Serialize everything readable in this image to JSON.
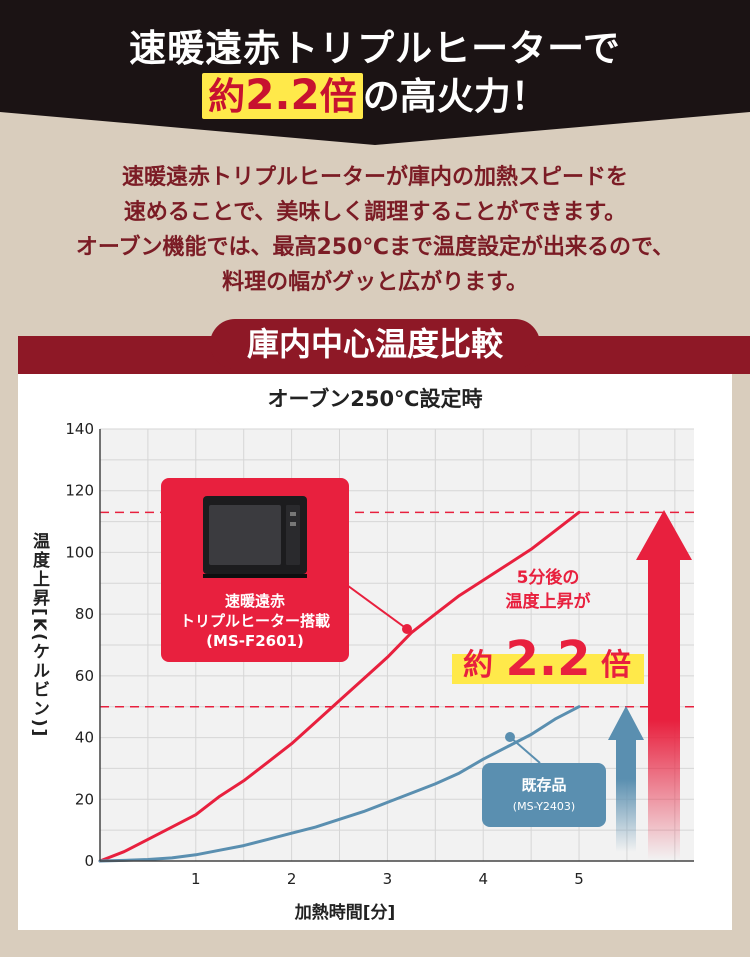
{
  "header": {
    "line1": "速暖遠赤トリプルヒーターで",
    "hl_prefix": "約",
    "hl_number": "2.2",
    "hl_suffix": "倍",
    "line2_rest": "の高火力！"
  },
  "description": [
    "速暖遠赤トリプルヒーターが庫内の加熱スピードを",
    "速めることで、美味しく調理することができます。",
    "オーブン機能では、最高250℃まで温度設定が出来るので、",
    "料理の幅がグッと広がります。"
  ],
  "section_title": "庫内中心温度比較",
  "chart_data": {
    "type": "line",
    "title": "オーブン250℃設定時",
    "xlabel": "加熱時間[分]",
    "ylabel": "温度上昇[K(ケルビン)]",
    "xlim": [
      0,
      6.2
    ],
    "ylim": [
      0,
      140
    ],
    "x_ticks": [
      "1",
      "2",
      "3",
      "4",
      "5"
    ],
    "y_ticks": [
      "0",
      "20",
      "40",
      "60",
      "80",
      "100",
      "120",
      "140"
    ],
    "grid": true,
    "series": [
      {
        "name": "速暖遠赤トリプルヒーター搭載（MS-F2601）",
        "color": "#e8203e",
        "x": [
          0,
          0.25,
          0.5,
          0.75,
          1,
          1.25,
          1.5,
          1.75,
          2,
          2.25,
          2.5,
          2.75,
          3,
          3.25,
          3.5,
          3.75,
          4,
          4.25,
          4.5,
          4.75,
          5
        ],
        "y": [
          0,
          3,
          7,
          11,
          15,
          21,
          26,
          32,
          38,
          45,
          52,
          59,
          66,
          74,
          80,
          86,
          91,
          96,
          101,
          107,
          113
        ]
      },
      {
        "name": "既存品（MS-Y2403）",
        "color": "#5a8fb0",
        "x": [
          0,
          0.25,
          0.5,
          0.75,
          1,
          1.25,
          1.5,
          1.75,
          2,
          2.25,
          2.5,
          2.75,
          3,
          3.25,
          3.5,
          3.75,
          4,
          4.25,
          4.5,
          4.75,
          5
        ],
        "y": [
          0,
          0.2,
          0.5,
          1,
          2,
          3.5,
          5,
          7,
          9,
          11,
          13.5,
          16,
          19,
          22,
          25,
          28.5,
          33,
          37,
          41,
          46,
          50
        ]
      }
    ],
    "reference_lines": [
      113,
      50
    ],
    "callouts": {
      "new_model_line1": "速暖遠赤",
      "new_model_line2": "トリプルヒーター搭載",
      "new_model_code": "(MS-F2601)",
      "old_model_name": "既存品",
      "old_model_code": "(MS-Y2403)",
      "annotation_line1": "5分後の",
      "annotation_line2": "温度上昇が",
      "annotation_prefix": "約",
      "annotation_number": "2.2",
      "annotation_suffix": "倍"
    },
    "colors": {
      "new": "#e8203e",
      "old": "#5a8fb0",
      "highlight": "#ffe94a",
      "dark_red": "#8e1826"
    }
  }
}
